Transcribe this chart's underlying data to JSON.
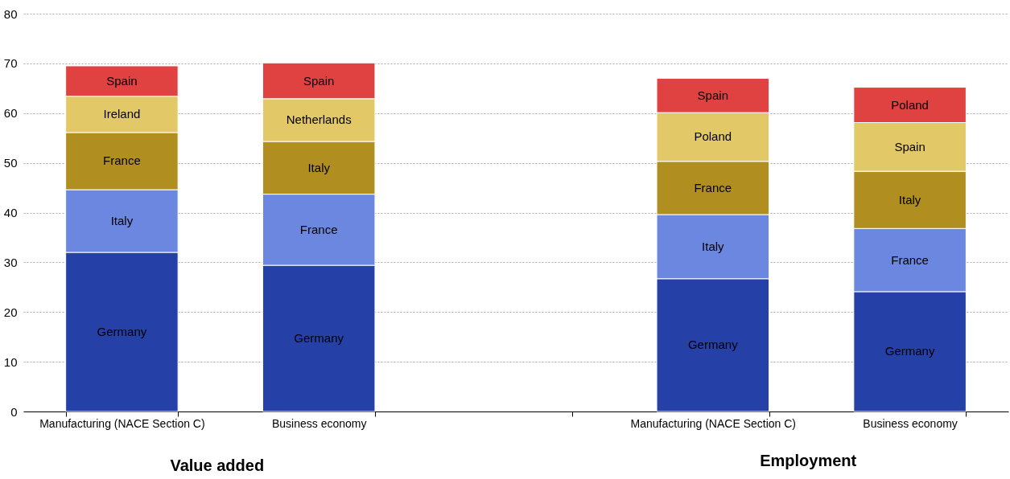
{
  "chart_data": {
    "type": "bar",
    "stacked": true,
    "categories": [
      "Manufacturing\n(NACE Section C)",
      "Business economy",
      null,
      "Manufacturing\n(NACE Section C)",
      "Business economy"
    ],
    "series": [
      {
        "color": "#2541a8",
        "values": [
          32,
          29.4,
          null,
          26.7,
          24.1
        ],
        "value_labels": [
          "Germany",
          "Germany",
          null,
          "Germany",
          "Germany"
        ]
      },
      {
        "color": "#6b87e0",
        "values": [
          12.6,
          14.3,
          null,
          12.9,
          12.7
        ],
        "value_labels": [
          "Italy",
          "France",
          null,
          "Italy",
          "France"
        ]
      },
      {
        "color": "#b08f20",
        "values": [
          11.5,
          10.6,
          null,
          10.7,
          11.5
        ],
        "value_labels": [
          "France",
          "Italy",
          null,
          "France",
          "Italy"
        ]
      },
      {
        "color": "#e3c867",
        "values": [
          7.3,
          8.6,
          null,
          9.8,
          9.8
        ],
        "value_labels": [
          "Ireland",
          "Netherlands",
          null,
          "Poland",
          "Spain"
        ]
      },
      {
        "color": "#e04141",
        "values": [
          6.1,
          7.2,
          null,
          6.9,
          7.1
        ],
        "value_labels": [
          "Spain",
          "Spain",
          null,
          "Spain",
          "Poland"
        ]
      }
    ],
    "ylim": [
      0,
      80
    ],
    "yticks": [
      0,
      10,
      20,
      30,
      40,
      50,
      60,
      70,
      80
    ],
    "grid": "y",
    "legend": false,
    "annotations": [
      "Value added",
      "Employment"
    ]
  }
}
